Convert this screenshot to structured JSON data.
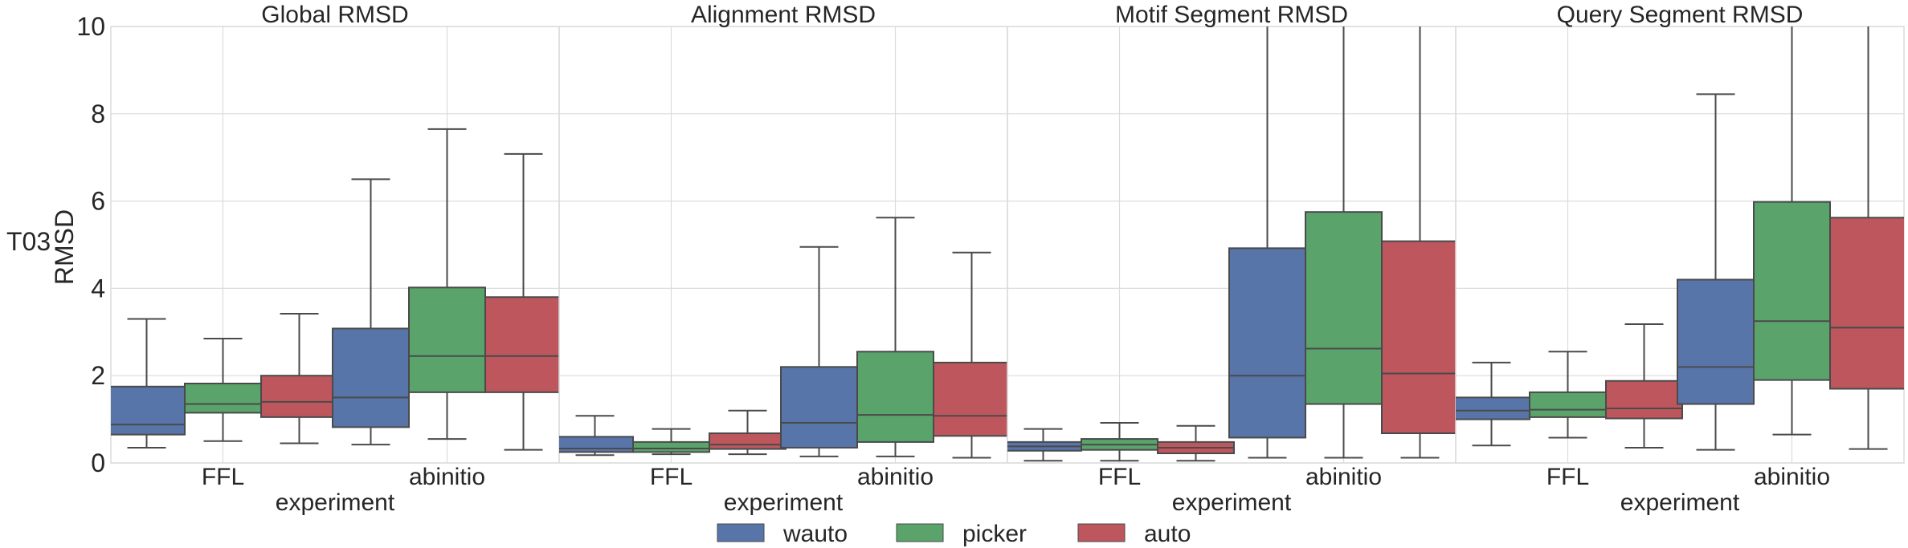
{
  "chart_data": {
    "type": "box",
    "row_label": "T03",
    "ylabel": "RMSD",
    "xlabel": "experiment",
    "ylim": [
      0,
      10
    ],
    "yticks": [
      "0",
      "2",
      "4",
      "6",
      "8",
      "10"
    ],
    "ytick_values": [
      0,
      2,
      4,
      6,
      8,
      10
    ],
    "categories": [
      "FFL",
      "abinitio"
    ],
    "grid": true,
    "legend_position": "bottom-center",
    "series": [
      {
        "name": "wauto",
        "color": "#5875a9"
      },
      {
        "name": "picker",
        "color": "#5aa46b"
      },
      {
        "name": "auto",
        "color": "#bd575d"
      }
    ],
    "panels": [
      {
        "title": "Global RMSD",
        "boxes": [
          [
            {
              "whislo": 0.35,
              "q1": 0.65,
              "med": 0.88,
              "q3": 1.75,
              "whishi": 3.3
            },
            {
              "whislo": 0.5,
              "q1": 1.15,
              "med": 1.35,
              "q3": 1.82,
              "whishi": 2.85
            },
            {
              "whislo": 0.45,
              "q1": 1.05,
              "med": 1.4,
              "q3": 2.0,
              "whishi": 3.42
            }
          ],
          [
            {
              "whislo": 0.42,
              "q1": 0.82,
              "med": 1.5,
              "q3": 3.08,
              "whishi": 6.5
            },
            {
              "whislo": 0.55,
              "q1": 1.62,
              "med": 2.45,
              "q3": 4.02,
              "whishi": 7.65
            },
            {
              "whislo": 0.3,
              "q1": 1.62,
              "med": 2.45,
              "q3": 3.8,
              "whishi": 7.08
            }
          ]
        ]
      },
      {
        "title": "Alignment RMSD",
        "boxes": [
          [
            {
              "whislo": 0.18,
              "q1": 0.25,
              "med": 0.33,
              "q3": 0.6,
              "whishi": 1.08
            },
            {
              "whislo": 0.2,
              "q1": 0.25,
              "med": 0.33,
              "q3": 0.48,
              "whishi": 0.78
            },
            {
              "whislo": 0.2,
              "q1": 0.32,
              "med": 0.42,
              "q3": 0.68,
              "whishi": 1.2
            }
          ],
          [
            {
              "whislo": 0.15,
              "q1": 0.35,
              "med": 0.92,
              "q3": 2.2,
              "whishi": 4.95
            },
            {
              "whislo": 0.15,
              "q1": 0.48,
              "med": 1.1,
              "q3": 2.55,
              "whishi": 5.62
            },
            {
              "whislo": 0.12,
              "q1": 0.62,
              "med": 1.08,
              "q3": 2.3,
              "whishi": 4.82
            }
          ]
        ]
      },
      {
        "title": "Motif Segment RMSD",
        "boxes": [
          [
            {
              "whislo": 0.05,
              "q1": 0.28,
              "med": 0.38,
              "q3": 0.48,
              "whishi": 0.78
            },
            {
              "whislo": 0.05,
              "q1": 0.3,
              "med": 0.42,
              "q3": 0.55,
              "whishi": 0.92
            },
            {
              "whislo": 0.05,
              "q1": 0.22,
              "med": 0.35,
              "q3": 0.48,
              "whishi": 0.85
            }
          ],
          [
            {
              "whislo": 0.12,
              "q1": 0.58,
              "med": 2.0,
              "q3": 4.92,
              "whishi": 10.5
            },
            {
              "whislo": 0.12,
              "q1": 1.35,
              "med": 2.62,
              "q3": 5.75,
              "whishi": 10.5
            },
            {
              "whislo": 0.12,
              "q1": 0.68,
              "med": 2.05,
              "q3": 5.08,
              "whishi": 10.5
            }
          ]
        ]
      },
      {
        "title": "Query Segment RMSD",
        "boxes": [
          [
            {
              "whislo": 0.4,
              "q1": 1.0,
              "med": 1.2,
              "q3": 1.5,
              "whishi": 2.3
            },
            {
              "whislo": 0.58,
              "q1": 1.05,
              "med": 1.22,
              "q3": 1.62,
              "whishi": 2.55
            },
            {
              "whislo": 0.35,
              "q1": 1.02,
              "med": 1.25,
              "q3": 1.88,
              "whishi": 3.18
            }
          ],
          [
            {
              "whislo": 0.3,
              "q1": 1.35,
              "med": 2.2,
              "q3": 4.2,
              "whishi": 8.45
            },
            {
              "whislo": 0.65,
              "q1": 1.9,
              "med": 3.25,
              "q3": 5.98,
              "whishi": 10.5
            },
            {
              "whislo": 0.32,
              "q1": 1.7,
              "med": 3.1,
              "q3": 5.62,
              "whishi": 10.5
            }
          ]
        ]
      }
    ]
  }
}
